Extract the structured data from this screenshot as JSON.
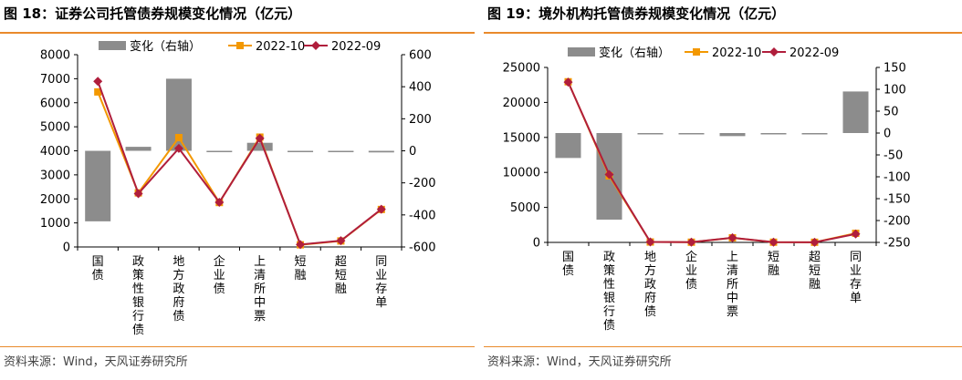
{
  "figures": [
    {
      "title": "图 18：证券公司托管债券规模变化情况（亿元）",
      "source": "资料来源：Wind，天风证券研究所",
      "chart_data": {
        "type": "bar",
        "categories": [
          "国债",
          "政策性银行债",
          "地方政府债",
          "企业债",
          "上清所中票",
          "短融",
          "超短融",
          "同业存单"
        ],
        "legend": [
          {
            "name": "变化（右轴）",
            "kind": "bar"
          },
          {
            "name": "2022-10",
            "kind": "line-square"
          },
          {
            "name": "2022-09",
            "kind": "line-diamond"
          }
        ],
        "series": [
          {
            "name": "变化（右轴）",
            "type": "bar",
            "axis": "right",
            "color": "#8c8c8c",
            "values": [
              -440,
              25,
              450,
              -5,
              50,
              -2,
              -8,
              -10
            ]
          },
          {
            "name": "2022-10",
            "type": "line",
            "axis": "left",
            "color": "#f39800",
            "marker": "square",
            "values": [
              6450,
              2250,
              4550,
              1850,
              4570,
              90,
              250,
              1560
            ]
          },
          {
            "name": "2022-09",
            "type": "line",
            "axis": "left",
            "color": "#b01e3c",
            "marker": "diamond",
            "values": [
              6890,
              2220,
              4100,
              1860,
              4520,
              100,
              260,
              1570
            ]
          }
        ],
        "ylim": [
          0,
          8000
        ],
        "yticks": [
          0,
          1000,
          2000,
          3000,
          4000,
          5000,
          6000,
          7000,
          8000
        ],
        "y2lim": [
          -600,
          600
        ],
        "y2ticks": [
          600,
          400,
          200,
          0,
          -200,
          -400,
          -600
        ],
        "y2tick_labels": [
          "600",
          "400",
          "200",
          "0",
          "-200",
          "-400",
          "-600"
        ],
        "legend_position": "top"
      }
    },
    {
      "title": "图 19：境外机构托管债券规模变化情况（亿元）",
      "source": "资料来源：Wind，天风证券研究所",
      "chart_data": {
        "type": "bar",
        "categories": [
          "国债",
          "政策性银行债",
          "地方政府债",
          "企业债",
          "上清所中票",
          "短融",
          "超短融",
          "同业存单"
        ],
        "legend": [
          {
            "name": "变化（右轴）",
            "kind": "bar"
          },
          {
            "name": "2022-10",
            "kind": "line-square"
          },
          {
            "name": "2022-09",
            "kind": "line-diamond"
          }
        ],
        "series": [
          {
            "name": "变化（右轴）",
            "type": "bar",
            "axis": "right",
            "color": "#8c8c8c",
            "values": [
              -57,
              -198,
              -1,
              -2,
              -7,
              -1,
              -0.5,
              95
            ]
          },
          {
            "name": "2022-10",
            "type": "line",
            "axis": "left",
            "color": "#f39800",
            "marker": "square",
            "values": [
              22950,
              9500,
              60,
              30,
              650,
              30,
              20,
              1300
            ]
          },
          {
            "name": "2022-09",
            "type": "line",
            "axis": "left",
            "color": "#b01e3c",
            "marker": "diamond",
            "values": [
              22900,
              9700,
              60,
              30,
              660,
              30,
              20,
              1200
            ]
          }
        ],
        "ylim": [
          0,
          25000
        ],
        "yticks": [
          0,
          5000,
          10000,
          15000,
          20000,
          25000
        ],
        "y2lim": [
          -250,
          150
        ],
        "y2ticks": [
          150,
          100,
          50,
          0,
          -50,
          -100,
          -150,
          -200,
          -250
        ],
        "y2tick_labels": [
          "150",
          "100",
          "50",
          "0",
          "-50",
          "-100",
          "-150",
          "-200",
          "-250"
        ],
        "legend_position": "top"
      }
    }
  ]
}
